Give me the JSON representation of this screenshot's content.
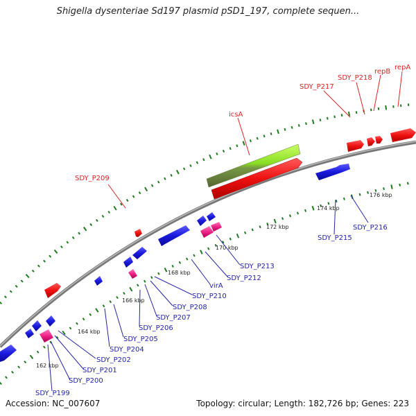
{
  "title": "Shigella dysenteriae Sd197 plasmid pSD1_197, complete sequen...",
  "footer": {
    "accession": "Accession: NC_007607",
    "topology": "Topology: circular; Length: 182,726 bp; Genes: 223"
  },
  "ticks": [
    "162 kbp",
    "164 kbp",
    "166 kbp",
    "168 kbp",
    "170 kbp",
    "172 kbp",
    "174 kbp",
    "176 kbp"
  ],
  "labels_outer": [
    "SDY_P209",
    "icsA",
    "SDY_P217",
    "SDY_P218",
    "repB",
    "repA"
  ],
  "labels_inner": [
    "SDY_P199",
    "SDY_P200",
    "SDY_P201",
    "SDY_P202",
    "SDY_P204",
    "SDY_P205",
    "SDY_P206",
    "SDY_P207",
    "SDY_P208",
    "SDY_P210",
    "virA",
    "SDY_P212",
    "SDY_P213",
    "SDY_P215",
    "SDY_P216"
  ],
  "colors": {
    "backbone": "#8a8a8a",
    "forward_gene": "#ee1111",
    "reverse_gene": "#1a1add",
    "highlight_gene": "#ee2288",
    "feature_bar": "#88dd22",
    "dots": "#1e7a1e",
    "outer_label": "#dd2222",
    "inner_label": "#2222aa"
  }
}
